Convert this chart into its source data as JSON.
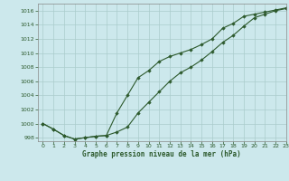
{
  "title": "Graphe pression niveau de la mer (hPa)",
  "background_color": "#cce8ec",
  "grid_color": "#aacccc",
  "line_color": "#2d5a2d",
  "marker_color": "#2d5a2d",
  "xlim": [
    -0.5,
    23
  ],
  "ylim": [
    997.5,
    1017.0
  ],
  "xticks": [
    0,
    1,
    2,
    3,
    4,
    5,
    6,
    7,
    8,
    9,
    10,
    11,
    12,
    13,
    14,
    15,
    16,
    17,
    18,
    19,
    20,
    21,
    22,
    23
  ],
  "yticks": [
    998,
    1000,
    1002,
    1004,
    1006,
    1008,
    1010,
    1012,
    1014,
    1016
  ],
  "series1_x": [
    0,
    1,
    2,
    3,
    4,
    5,
    6,
    7,
    8,
    9,
    10,
    11,
    12,
    13,
    14,
    15,
    16,
    17,
    18,
    19,
    20,
    21,
    22,
    23
  ],
  "series1_y": [
    1000.0,
    999.2,
    998.3,
    997.8,
    998.0,
    998.2,
    998.3,
    998.8,
    999.5,
    1001.5,
    1003.0,
    1004.5,
    1006.0,
    1007.2,
    1008.0,
    1009.0,
    1010.2,
    1011.5,
    1012.5,
    1013.8,
    1015.0,
    1015.5,
    1016.0,
    1016.3
  ],
  "series2_x": [
    0,
    1,
    2,
    3,
    4,
    5,
    6,
    7,
    8,
    9,
    10,
    11,
    12,
    13,
    14,
    15,
    16,
    17,
    18,
    19,
    20,
    21,
    22,
    23
  ],
  "series2_y": [
    1000.0,
    999.2,
    998.3,
    997.8,
    998.0,
    998.2,
    998.3,
    1001.5,
    1004.0,
    1006.5,
    1007.5,
    1008.8,
    1009.5,
    1010.0,
    1010.5,
    1011.2,
    1012.0,
    1013.5,
    1014.2,
    1015.2,
    1015.5,
    1015.8,
    1016.1,
    1016.4
  ]
}
